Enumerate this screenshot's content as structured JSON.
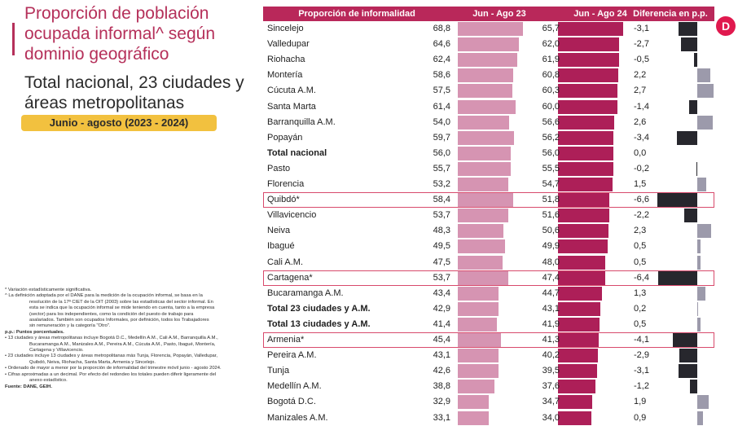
{
  "title": {
    "pink": "Proporción de población ocupada informal^ según dominio geográfico",
    "dark": "Total nacional, 23 ciudades y áreas metropolitanas",
    "period": "Junio - agosto (2023 - 2024)"
  },
  "logo_text": "D",
  "colors": {
    "accent": "#b9285a",
    "bar23": "#d694b2",
    "bar24": "#ad1f58",
    "neg": "#27272d",
    "pos": "#9c9aab",
    "period_bg": "#f2c13f"
  },
  "notes": [
    "* Variación estadísticamente significativa.",
    "^ La definición adoptada por el DANE para la medición de la ocupación informal, se basa en la",
    "resolución de la 17ª CIET de la OIT (2003) sobre las estadísticas del sector informal. En",
    "esta se indica que la ocupación informal se mide teniendo en cuenta, tanto a la empresa",
    "(sector) para los independientes, como la condición del puesto de trabajo para",
    "asalariados. También son ocupados Informales, por definición, todos los Trabajadores",
    "sin remuneración y la categoría \"Otro\".",
    "p.p.: Puntos porcentuales.",
    "• 13 ciudades y áreas metropolitanas incluye Bogotá D.C., Medellín A.M., Cali A.M., Barranquilla A.M.,",
    "Bucaramanga A.M., Manizales A.M., Pereira A.M., Cúcuta A.M., Pasto, Ibagué, Montería,",
    "Cartagena y Villavicencio.",
    "• 23 ciudades incluye 13 ciudades y áreas metropolitanas más Tunja, Florencia, Popayán, Valledupar,",
    "Quibdó, Neiva, Riohacha, Santa Marta, Armenia y Sincelejo.",
    "• Ordenado de mayor a menor por la proporción de informalidad del trimestre móvil junio - agosto 2024.",
    "• Cifras aproximadas a un decimal. Por efecto del redondeo los totales pueden diferir ligeramente del",
    "anexo estadístico.",
    "Fuente: DANE, GEIH."
  ],
  "chart_data": {
    "type": "bar",
    "headers": [
      "Proporción de informalidad",
      "Jun - Ago 23",
      "Jun - Ago 24",
      "Diferencia en p.p."
    ],
    "categories": [
      "Sincelejo",
      "Valledupar",
      "Riohacha",
      "Montería",
      "Cúcuta A.M.",
      "Santa Marta",
      "Barranquilla A.M.",
      "Popayán",
      "Total nacional",
      "Pasto",
      "Florencia",
      "Quibdó*",
      "Villavicencio",
      "Neiva",
      "Ibagué",
      "Cali A.M.",
      "Cartagena*",
      "Bucaramanga A.M.",
      "Total 23 ciudades y A.M.",
      "Total 13 ciudades y A.M.",
      "Armenia*",
      "Pereira A.M.",
      "Tunja",
      "Medellín A.M.",
      "Bogotá D.C.",
      "Manizales A.M."
    ],
    "bold_rows": [
      "Total nacional",
      "Total 23 ciudades y A.M.",
      "Total 13 ciudades y A.M."
    ],
    "highlighted_rows": [
      "Quibdó*",
      "Cartagena*",
      "Armenia*"
    ],
    "series": [
      {
        "name": "Jun - Ago 23",
        "values": [
          68.8,
          64.6,
          62.4,
          58.6,
          57.5,
          61.4,
          54.0,
          59.7,
          56.0,
          55.7,
          53.2,
          58.4,
          53.7,
          48.3,
          49.5,
          47.5,
          53.7,
          43.4,
          42.9,
          41.4,
          45.4,
          43.1,
          42.6,
          38.8,
          32.9,
          33.1
        ]
      },
      {
        "name": "Jun - Ago 24",
        "values": [
          65.7,
          62.0,
          61.9,
          60.8,
          60.3,
          60.0,
          56.6,
          56.2,
          56.0,
          55.5,
          54.7,
          51.8,
          51.6,
          50.6,
          49.9,
          48.0,
          47.4,
          44.7,
          43.1,
          41.9,
          41.3,
          40.2,
          39.5,
          37.6,
          34.7,
          34.0
        ]
      },
      {
        "name": "Diferencia en p.p.",
        "values": [
          -3.1,
          -2.7,
          -0.5,
          2.2,
          2.7,
          -1.4,
          2.6,
          -3.4,
          0.0,
          -0.2,
          1.5,
          -6.6,
          -2.2,
          2.3,
          0.5,
          0.5,
          -6.4,
          1.3,
          0.2,
          0.5,
          -4.1,
          -2.9,
          -3.1,
          -1.2,
          1.9,
          0.9
        ]
      }
    ],
    "labels_23": [
      "68,8",
      "64,6",
      "62,4",
      "58,6",
      "57,5",
      "61,4",
      "54,0",
      "59,7",
      "56,0",
      "55,7",
      "53,2",
      "58,4",
      "53,7",
      "48,3",
      "49,5",
      "47,5",
      "53,7",
      "43,4",
      "42,9",
      "41,4",
      "45,4",
      "43,1",
      "42,6",
      "38,8",
      "32,9",
      "33,1"
    ],
    "labels_24": [
      "65,7",
      "62,0",
      "61,9",
      "60,8",
      "60,3",
      "60,0",
      "56,6",
      "56,2",
      "56,0",
      "55,5",
      "54,7",
      "51,8",
      "51,6",
      "50,6",
      "49,9",
      "48,0",
      "47,4",
      "44,7",
      "43,1",
      "41,9",
      "41,3",
      "40,2",
      "39,5",
      "37,6",
      "34,7",
      "34,0"
    ],
    "labels_dif": [
      "-3,1",
      "-2,7",
      "-0,5",
      "2,2",
      "2,7",
      "-1,4",
      "2,6",
      "-3,4",
      "0,0",
      "-0,2",
      "1,5",
      "-6,6",
      "-2,2",
      "2,3",
      "0,5",
      "0,5",
      "-6,4",
      "1,3",
      "0,2",
      "0,5",
      "-4,1",
      "-2,9",
      "-3,1",
      "-1,2",
      "1,9",
      "0,9"
    ]
  }
}
